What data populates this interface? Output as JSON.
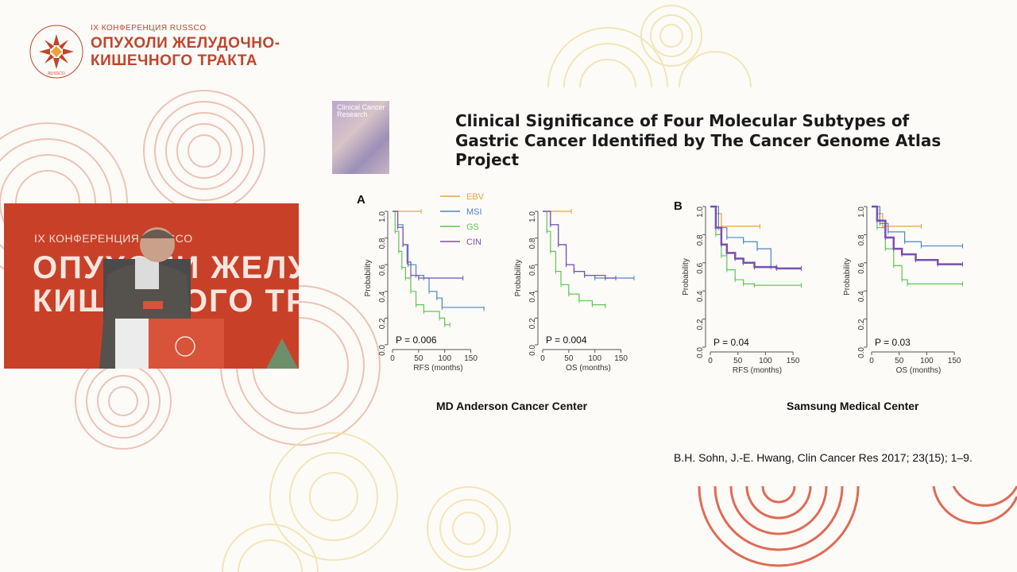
{
  "conference": {
    "small_title": "IX КОНФЕРЕНЦИЯ RUSSCO",
    "title_line1": "ОПУХОЛИ ЖЕЛУДОЧНО-",
    "title_line2": "КИШЕЧНОГО ТРАКТА",
    "logo_ring_text": "RUSSCO"
  },
  "video": {
    "banner_small": "IX КОНФЕРЕНЦИЯ RUSSCO",
    "banner_big": "ОПУХОЛИ ЖЕЛУДОЧНО-\nКИШЕЧНОГО ТРАКТА"
  },
  "slide": {
    "journal_thumb": "Clinical Cancer Research",
    "title": "Clinical Significance of Four Molecular Subtypes of Gastric Cancer Identified by The Cancer Genome Atlas Project",
    "panel_a_letter": "A",
    "panel_b_letter": "B",
    "site_a": "MD Anderson Cancer Center",
    "site_b": "Samsung Medical Center",
    "citation": "B.H. Sohn, J.-E. Hwang, Clin Cancer Res 2017; 23(15); 1–9."
  },
  "colors": {
    "EBV": "#e8a33a",
    "MSI": "#4b86c4",
    "GS": "#5fc456",
    "CIN": "#7a4fb0",
    "brand": "#c0452c"
  },
  "chart_data": [
    {
      "type": "line",
      "panel": "A",
      "site": "MD Anderson Cancer Center",
      "xlabel": "RFS (months)",
      "ylabel": "Probability",
      "xlim": [
        0,
        175
      ],
      "ylim": [
        0,
        1.0
      ],
      "xticks": [
        0,
        50,
        100,
        150
      ],
      "yticks": [
        0.0,
        0.2,
        0.4,
        0.6,
        0.8,
        1.0
      ],
      "pvalue": "P = 0.006",
      "legend": [
        "EBV",
        "MSI",
        "GS",
        "CIN"
      ],
      "series": [
        {
          "name": "EBV",
          "points": [
            [
              0,
              1.0
            ],
            [
              55,
              1.0
            ]
          ]
        },
        {
          "name": "MSI",
          "points": [
            [
              0,
              1.0
            ],
            [
              10,
              0.9
            ],
            [
              20,
              0.75
            ],
            [
              30,
              0.6
            ],
            [
              45,
              0.52
            ],
            [
              60,
              0.5
            ],
            [
              70,
              0.4
            ],
            [
              85,
              0.35
            ],
            [
              95,
              0.28
            ],
            [
              175,
              0.27
            ]
          ]
        },
        {
          "name": "GS",
          "points": [
            [
              0,
              1.0
            ],
            [
              5,
              0.85
            ],
            [
              12,
              0.7
            ],
            [
              18,
              0.58
            ],
            [
              25,
              0.5
            ],
            [
              35,
              0.4
            ],
            [
              45,
              0.3
            ],
            [
              60,
              0.25
            ],
            [
              90,
              0.2
            ],
            [
              100,
              0.15
            ],
            [
              110,
              0.15
            ]
          ]
        },
        {
          "name": "CIN",
          "points": [
            [
              0,
              1.0
            ],
            [
              10,
              0.88
            ],
            [
              20,
              0.75
            ],
            [
              28,
              0.62
            ],
            [
              35,
              0.52
            ],
            [
              50,
              0.5
            ],
            [
              135,
              0.5
            ]
          ]
        }
      ]
    },
    {
      "type": "line",
      "panel": "A",
      "site": "MD Anderson Cancer Center",
      "xlabel": "OS (months)",
      "ylabel": "Probability",
      "xlim": [
        0,
        175
      ],
      "ylim": [
        0,
        1.0
      ],
      "xticks": [
        0,
        50,
        100,
        150
      ],
      "yticks": [
        0.0,
        0.2,
        0.4,
        0.6,
        0.8,
        1.0
      ],
      "pvalue": "P = 0.004",
      "legend": [
        "EBV",
        "MSI",
        "GS",
        "CIN"
      ],
      "series": [
        {
          "name": "EBV",
          "points": [
            [
              0,
              1.0
            ],
            [
              55,
              1.0
            ]
          ]
        },
        {
          "name": "MSI",
          "points": [
            [
              0,
              1.0
            ],
            [
              15,
              0.9
            ],
            [
              30,
              0.75
            ],
            [
              45,
              0.6
            ],
            [
              60,
              0.55
            ],
            [
              80,
              0.52
            ],
            [
              100,
              0.5
            ],
            [
              175,
              0.5
            ]
          ]
        },
        {
          "name": "GS",
          "points": [
            [
              0,
              1.0
            ],
            [
              8,
              0.85
            ],
            [
              15,
              0.7
            ],
            [
              25,
              0.55
            ],
            [
              35,
              0.45
            ],
            [
              50,
              0.38
            ],
            [
              70,
              0.33
            ],
            [
              95,
              0.3
            ],
            [
              120,
              0.29
            ]
          ]
        },
        {
          "name": "CIN",
          "points": [
            [
              0,
              1.0
            ],
            [
              15,
              0.9
            ],
            [
              30,
              0.75
            ],
            [
              45,
              0.6
            ],
            [
              60,
              0.55
            ],
            [
              80,
              0.52
            ],
            [
              120,
              0.5
            ],
            [
              140,
              0.5
            ]
          ]
        }
      ]
    },
    {
      "type": "line",
      "panel": "B",
      "site": "Samsung Medical Center",
      "xlabel": "RFS (months)",
      "ylabel": "Probability",
      "xlim": [
        0,
        170
      ],
      "ylim": [
        0,
        1.0
      ],
      "xticks": [
        0,
        50,
        100,
        150
      ],
      "yticks": [
        0.0,
        0.2,
        0.4,
        0.6,
        0.8,
        1.0
      ],
      "pvalue": "P = 0.04",
      "series": [
        {
          "name": "EBV",
          "points": [
            [
              0,
              1.0
            ],
            [
              10,
              0.95
            ],
            [
              20,
              0.86
            ],
            [
              90,
              0.86
            ]
          ]
        },
        {
          "name": "MSI",
          "points": [
            [
              0,
              1.0
            ],
            [
              15,
              0.85
            ],
            [
              30,
              0.78
            ],
            [
              60,
              0.75
            ],
            [
              85,
              0.7
            ],
            [
              110,
              0.57
            ],
            [
              120,
              0.57
            ]
          ]
        },
        {
          "name": "GS",
          "points": [
            [
              0,
              1.0
            ],
            [
              10,
              0.8
            ],
            [
              20,
              0.65
            ],
            [
              30,
              0.55
            ],
            [
              45,
              0.48
            ],
            [
              60,
              0.45
            ],
            [
              80,
              0.44
            ],
            [
              165,
              0.44
            ]
          ]
        },
        {
          "name": "CIN",
          "points": [
            [
              0,
              1.0
            ],
            [
              10,
              0.85
            ],
            [
              20,
              0.73
            ],
            [
              30,
              0.67
            ],
            [
              45,
              0.63
            ],
            [
              60,
              0.6
            ],
            [
              80,
              0.57
            ],
            [
              120,
              0.56
            ],
            [
              165,
              0.56
            ]
          ]
        }
      ]
    },
    {
      "type": "line",
      "panel": "B",
      "site": "Samsung Medical Center",
      "xlabel": "OS (months)",
      "ylabel": "Probability",
      "xlim": [
        0,
        170
      ],
      "ylim": [
        0,
        1.0
      ],
      "xticks": [
        0,
        50,
        100,
        150
      ],
      "yticks": [
        0.0,
        0.2,
        0.4,
        0.6,
        0.8,
        1.0
      ],
      "pvalue": "P = 0.03",
      "series": [
        {
          "name": "EBV",
          "points": [
            [
              0,
              1.0
            ],
            [
              10,
              0.95
            ],
            [
              20,
              0.86
            ],
            [
              90,
              0.86
            ]
          ]
        },
        {
          "name": "MSI",
          "points": [
            [
              0,
              1.0
            ],
            [
              15,
              0.88
            ],
            [
              30,
              0.82
            ],
            [
              60,
              0.75
            ],
            [
              90,
              0.72
            ],
            [
              165,
              0.72
            ]
          ]
        },
        {
          "name": "GS",
          "points": [
            [
              0,
              1.0
            ],
            [
              10,
              0.85
            ],
            [
              25,
              0.7
            ],
            [
              40,
              0.58
            ],
            [
              55,
              0.48
            ],
            [
              65,
              0.45
            ],
            [
              165,
              0.45
            ]
          ]
        },
        {
          "name": "CIN",
          "points": [
            [
              0,
              1.0
            ],
            [
              10,
              0.9
            ],
            [
              25,
              0.78
            ],
            [
              40,
              0.7
            ],
            [
              55,
              0.66
            ],
            [
              80,
              0.62
            ],
            [
              120,
              0.59
            ],
            [
              165,
              0.59
            ]
          ]
        }
      ]
    }
  ]
}
